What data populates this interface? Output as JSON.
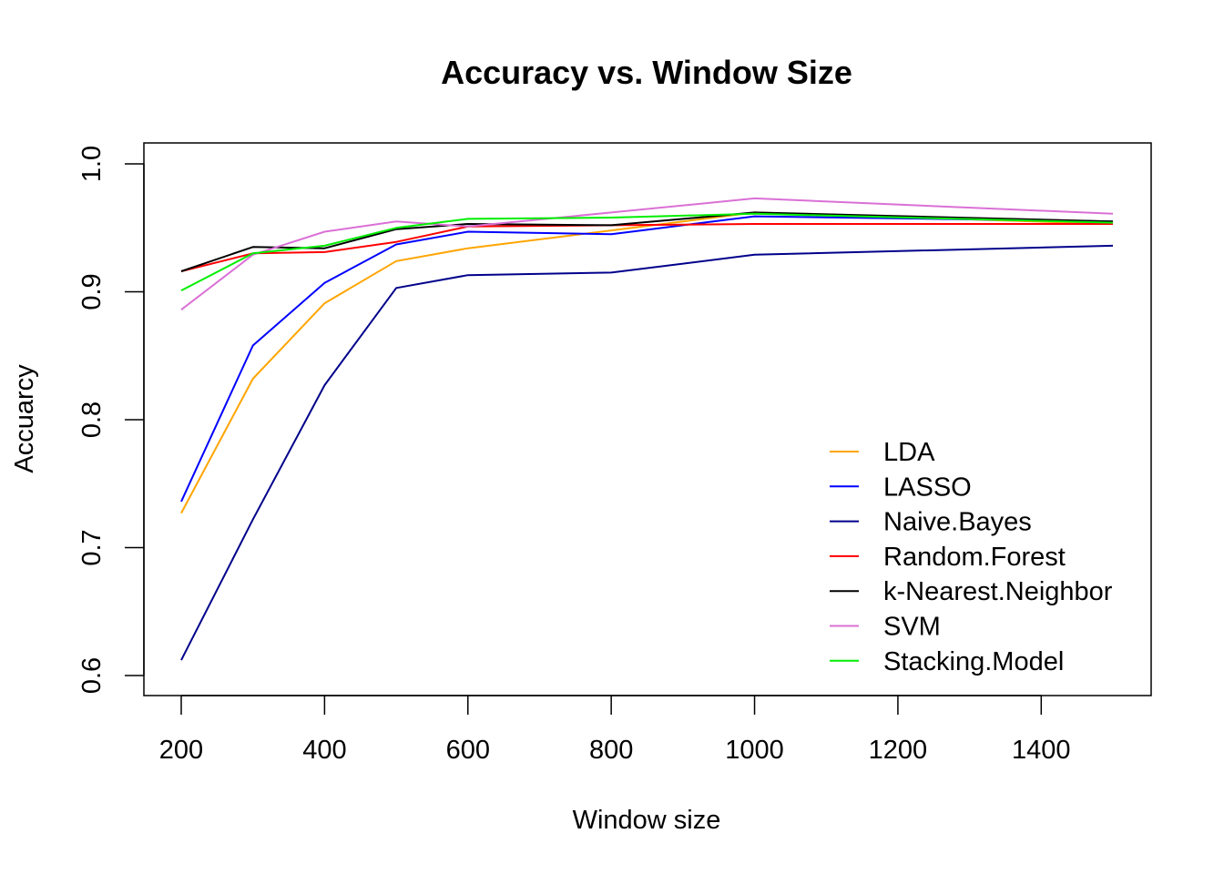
{
  "chart_data": {
    "type": "line",
    "title": "Accuracy vs. Window Size",
    "xlabel": "Window size",
    "ylabel": "Accuarcy",
    "x": [
      200,
      300,
      400,
      500,
      600,
      800,
      1000,
      1500
    ],
    "xlim": [
      200,
      1500
    ],
    "ylim": [
      0.6,
      1.0
    ],
    "xticks": [
      200,
      400,
      600,
      800,
      1000,
      1200,
      1400
    ],
    "yticks": [
      0.6,
      0.7,
      0.8,
      0.9,
      1.0
    ],
    "xtick_labels": [
      "200",
      "400",
      "600",
      "800",
      "1000",
      "1200",
      "1400"
    ],
    "ytick_labels": [
      "0.6",
      "0.7",
      "0.8",
      "0.9",
      "1.0"
    ],
    "grid": false,
    "legend_position": "bottom-right",
    "series": [
      {
        "name": "LDA",
        "color": "#FFA500",
        "values": [
          0.727,
          0.832,
          0.891,
          0.924,
          0.934,
          0.948,
          0.962,
          0.953
        ]
      },
      {
        "name": "LASSO",
        "color": "#0000FF",
        "values": [
          0.736,
          0.858,
          0.907,
          0.937,
          0.947,
          0.945,
          0.959,
          0.955
        ]
      },
      {
        "name": "Naive.Bayes",
        "color": "#00008B",
        "values": [
          0.612,
          0.722,
          0.827,
          0.903,
          0.913,
          0.915,
          0.929,
          0.936
        ]
      },
      {
        "name": "Random.Forest",
        "color": "#FF0000",
        "values": [
          0.916,
          0.93,
          0.931,
          0.939,
          0.951,
          0.952,
          0.953,
          0.953
        ]
      },
      {
        "name": "k-Nearest.Neighbor",
        "color": "#000000",
        "values": [
          0.916,
          0.935,
          0.934,
          0.949,
          0.953,
          0.952,
          0.962,
          0.955
        ]
      },
      {
        "name": "SVM",
        "color": "#DA70D6",
        "values": [
          0.886,
          0.929,
          0.947,
          0.955,
          0.951,
          0.962,
          0.973,
          0.961
        ]
      },
      {
        "name": "Stacking.Model",
        "color": "#00EE00",
        "values": [
          0.901,
          0.93,
          0.936,
          0.95,
          0.957,
          0.958,
          0.961,
          0.954
        ]
      }
    ]
  }
}
